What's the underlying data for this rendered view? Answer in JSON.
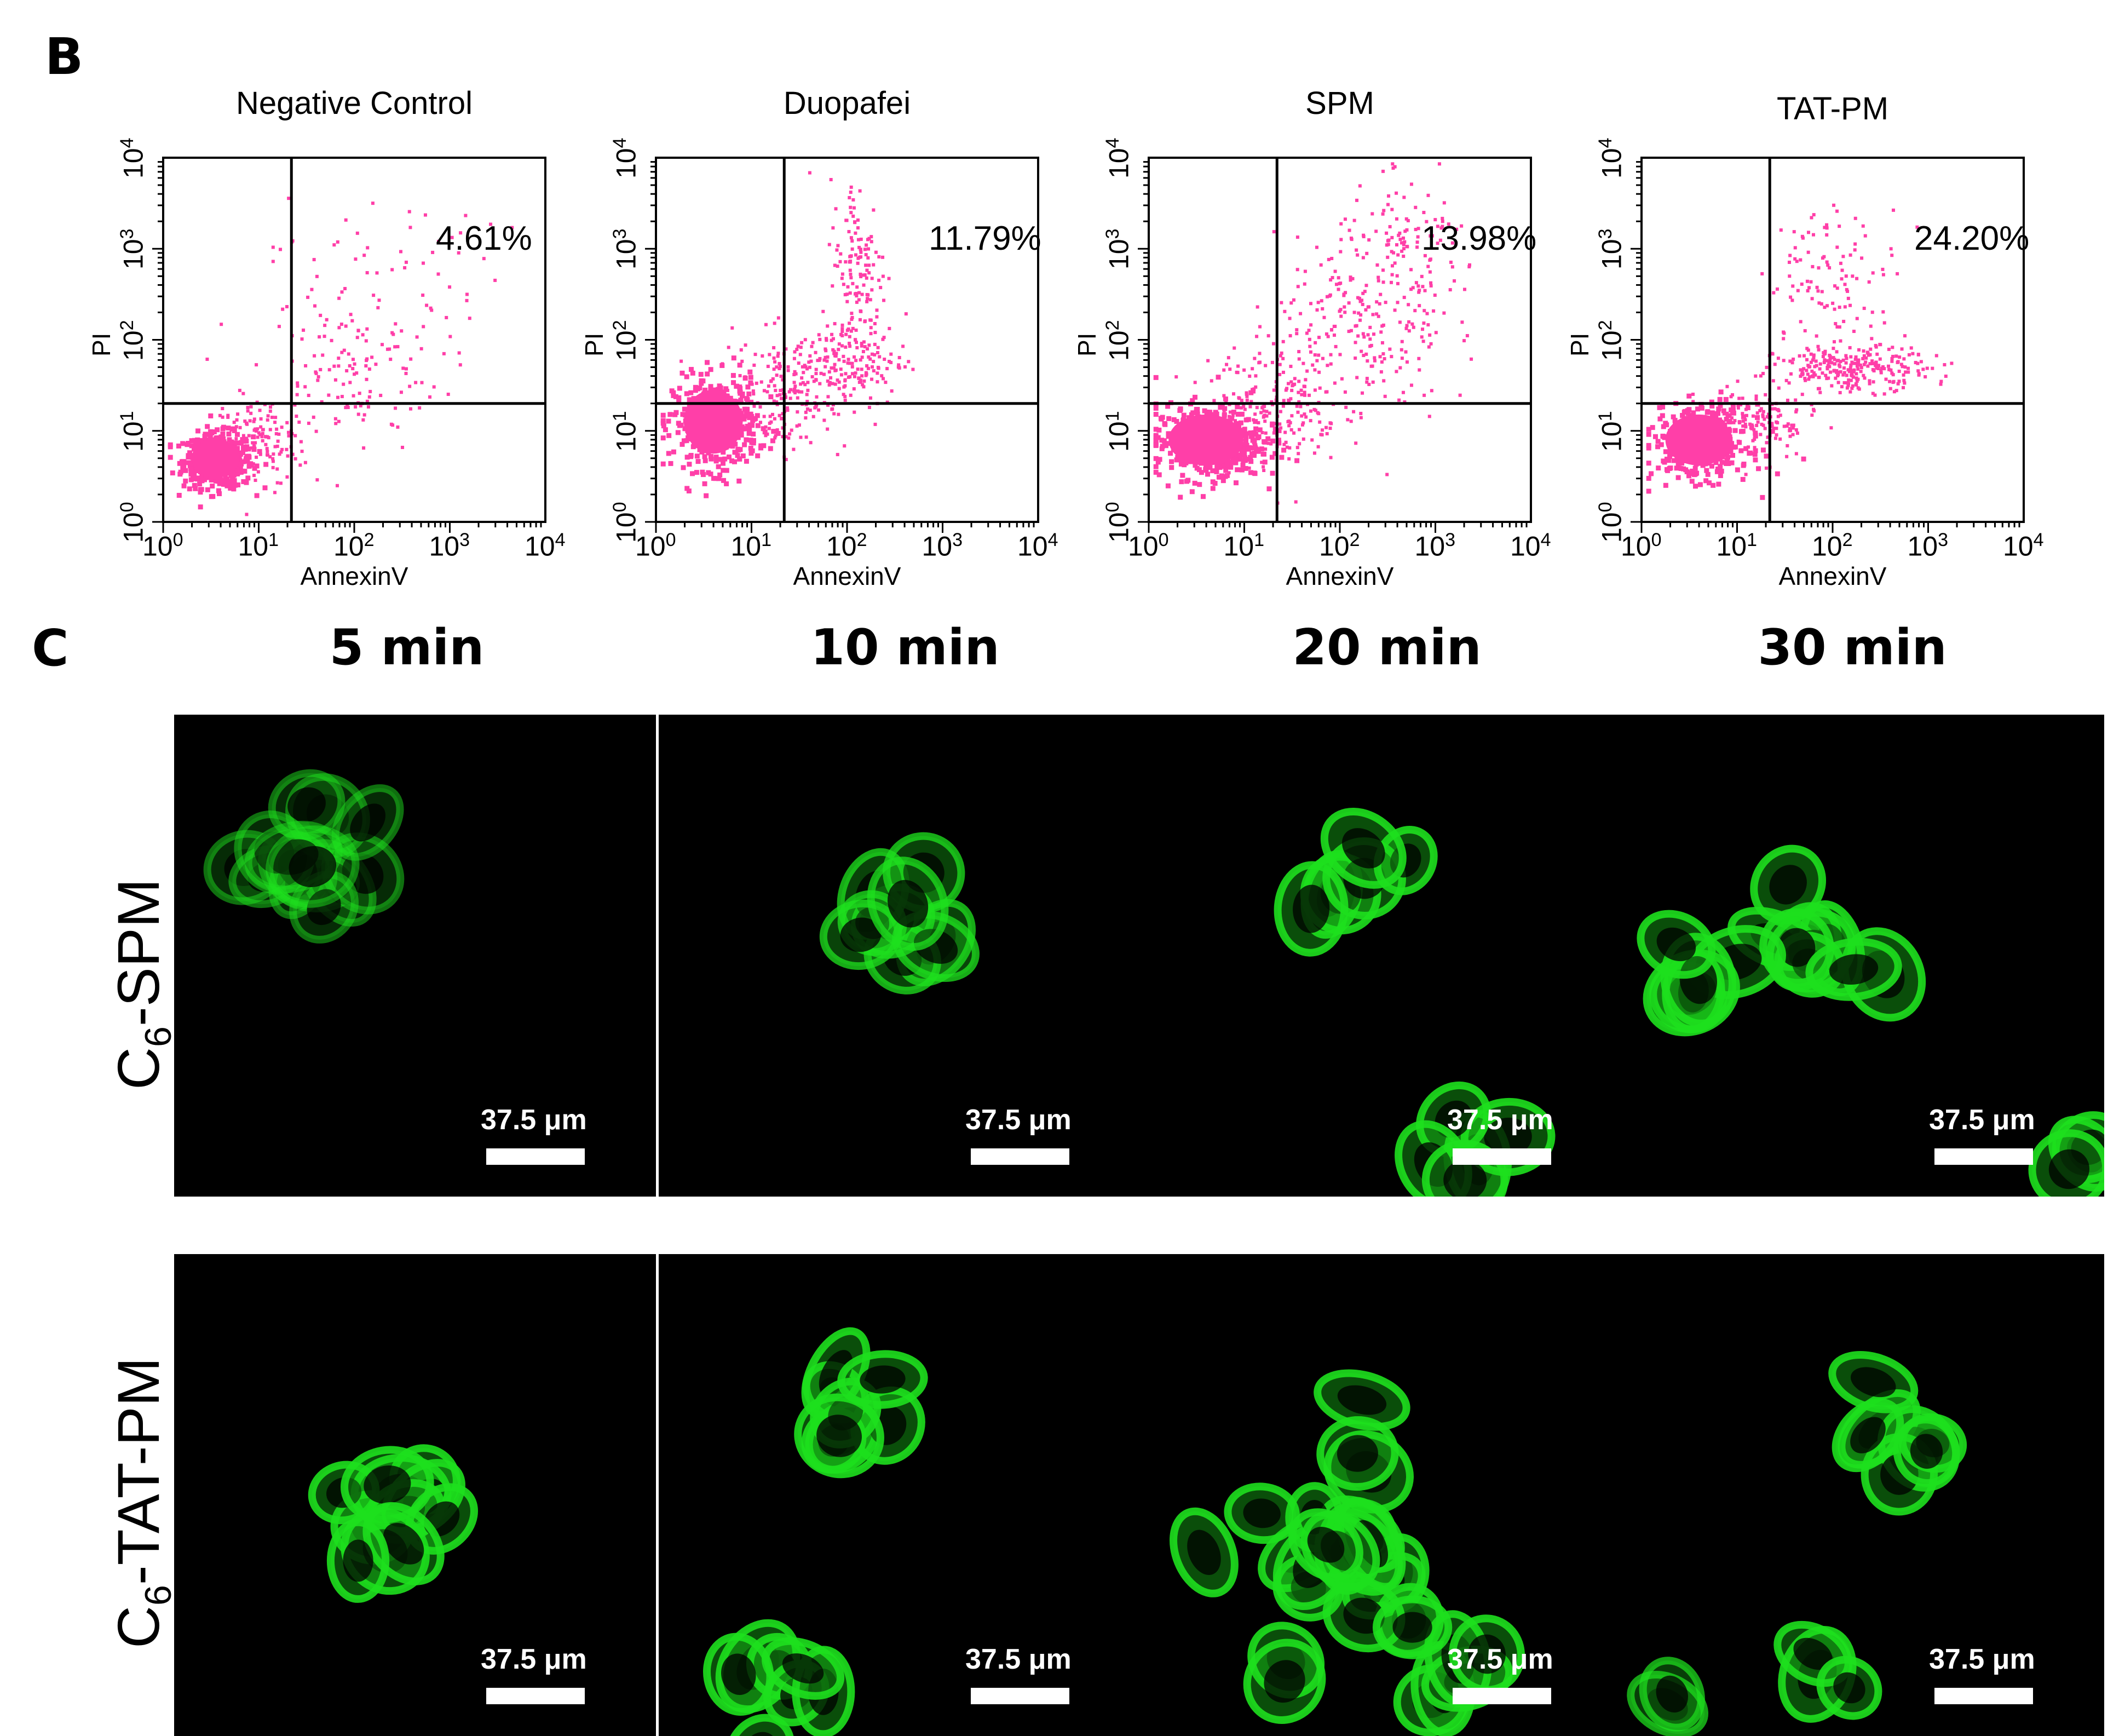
{
  "panel_b": {
    "letter": "B",
    "x_axis_label": "AnnexinV",
    "y_axis_label": "PI",
    "tick_base": "10",
    "tick_exponents": [
      "0",
      "1",
      "2",
      "3",
      "4"
    ],
    "point_color": "#ff3fa8",
    "plots": [
      {
        "title": "Negative Control",
        "percent": "4.61%"
      },
      {
        "title": "Duopafei",
        "percent": "11.79%"
      },
      {
        "title": "SPM",
        "percent": "13.98%"
      },
      {
        "title": "TAT-PM",
        "percent": "24.20%"
      }
    ]
  },
  "panel_c": {
    "letter": "C",
    "time_labels": [
      "5 min",
      "10 min",
      "20 min",
      "30 min"
    ],
    "rows": [
      {
        "label_main": "C",
        "label_sub": "6",
        "label_rest": "-SPM"
      },
      {
        "label_main": "C",
        "label_sub": "6",
        "label_rest": "-TAT-PM"
      }
    ],
    "scale_bar_label": "37.5 μm",
    "fluorescence_color": "#1ee01e"
  },
  "chart_data": [
    {
      "type": "scatter",
      "title": "Negative Control",
      "xlabel": "AnnexinV",
      "ylabel": "PI",
      "xscale": "log",
      "yscale": "log",
      "xlim": [
        1,
        10000
      ],
      "ylim": [
        1,
        10000
      ],
      "gate_x": 22,
      "gate_y": 20,
      "annotation": "4.61%"
    },
    {
      "type": "scatter",
      "title": "Duopafei",
      "xlabel": "AnnexinV",
      "ylabel": "PI",
      "xscale": "log",
      "yscale": "log",
      "xlim": [
        1,
        10000
      ],
      "ylim": [
        1,
        10000
      ],
      "gate_x": 22,
      "gate_y": 20,
      "annotation": "11.79%"
    },
    {
      "type": "scatter",
      "title": "SPM",
      "xlabel": "AnnexinV",
      "ylabel": "PI",
      "xscale": "log",
      "yscale": "log",
      "xlim": [
        1,
        10000
      ],
      "ylim": [
        1,
        10000
      ],
      "gate_x": 22,
      "gate_y": 20,
      "annotation": "13.98%"
    },
    {
      "type": "scatter",
      "title": "TAT-PM",
      "xlabel": "AnnexinV",
      "ylabel": "PI",
      "xscale": "log",
      "yscale": "log",
      "xlim": [
        1,
        10000
      ],
      "ylim": [
        1,
        10000
      ],
      "gate_x": 22,
      "gate_y": 20,
      "annotation": "24.20%"
    }
  ]
}
